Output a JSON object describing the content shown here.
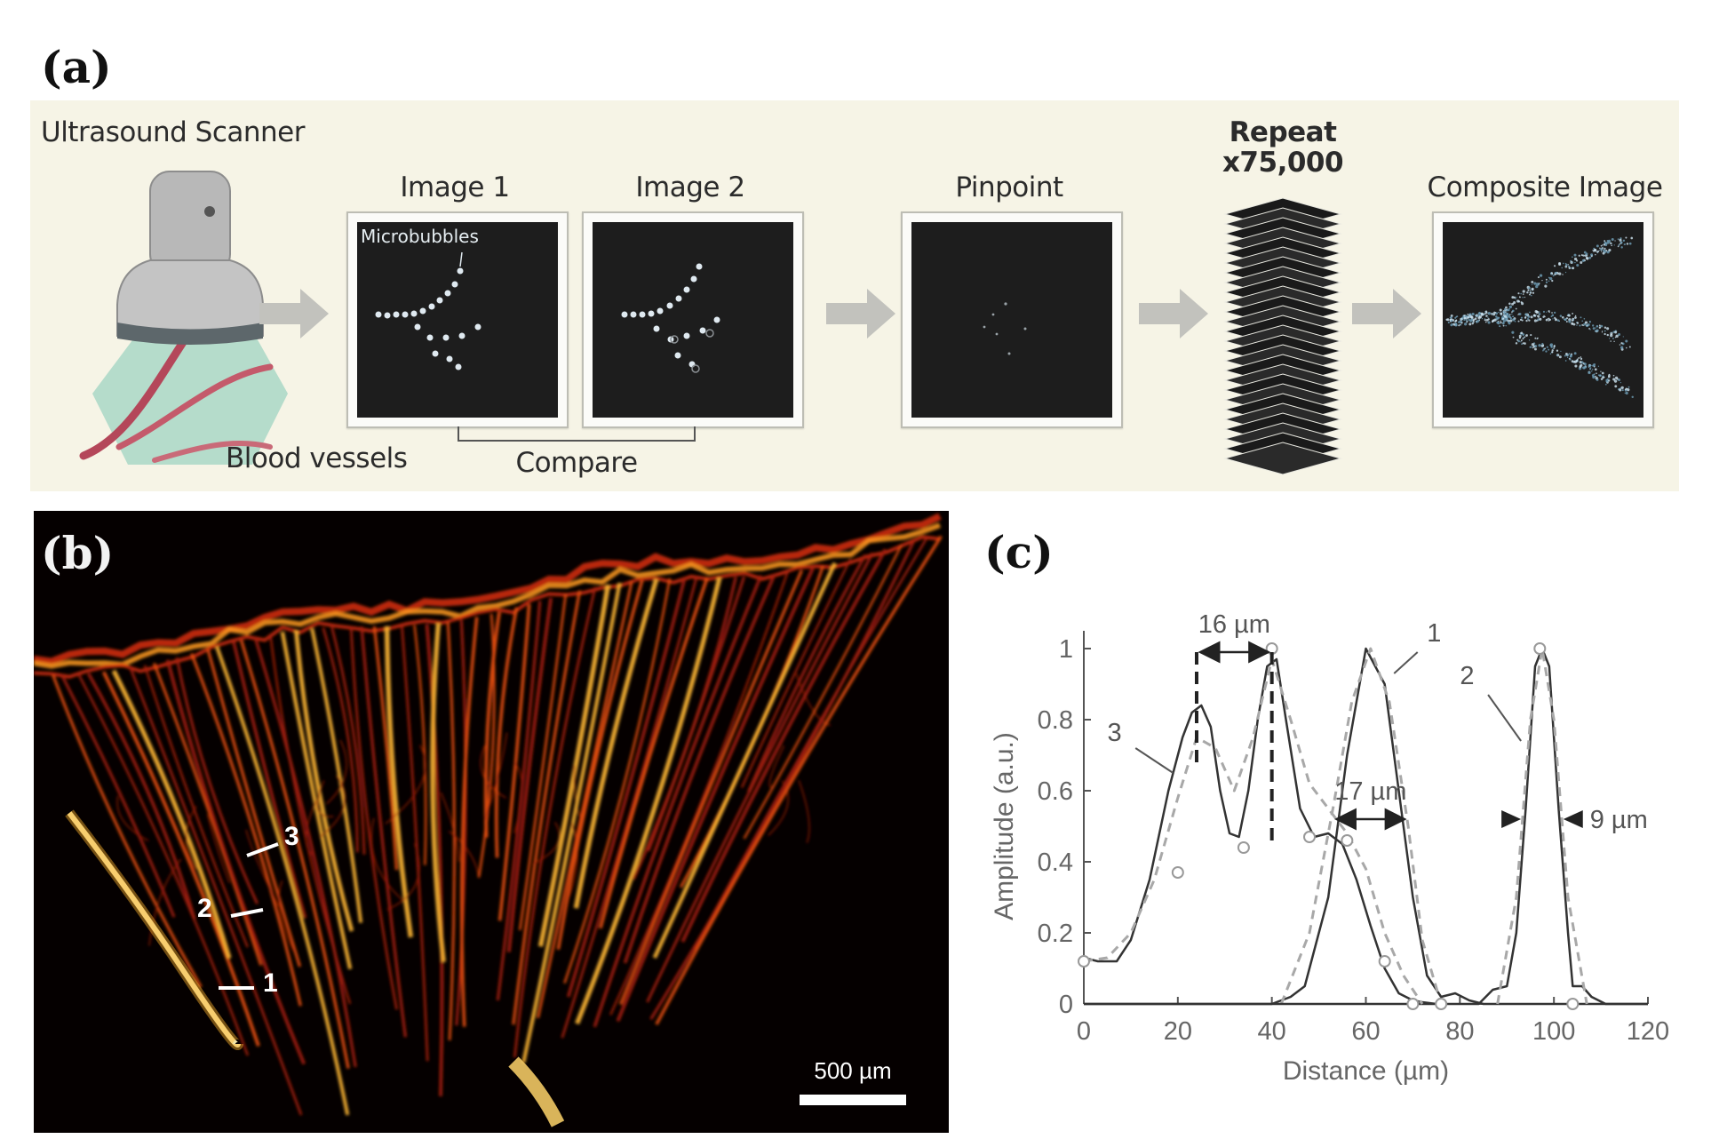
{
  "panel_labels": {
    "a": "(a)",
    "b": "(b)",
    "c": "(c)"
  },
  "workflow": {
    "scanner_label": "Ultrasound Scanner",
    "vessels_label": "Blood vessels",
    "image1_title": "Image 1",
    "image2_title": "Image 2",
    "microbubbles_label": "Microbubbles",
    "compare_label": "Compare",
    "pinpoint_title": "Pinpoint",
    "repeat_line1": "Repeat",
    "repeat_line2": "x75,000",
    "composite_title": "Composite Image",
    "colors": {
      "background": "#f6f4e6",
      "screen": "#1d1d1d",
      "arrow": "#c2c2bd",
      "vessel": "#b4475a",
      "bubble": "#dfe9f0"
    }
  },
  "vessel_image": {
    "scale_bar_label": "500 µm",
    "line_labels": [
      "1",
      "2",
      "3"
    ]
  },
  "chart_data": {
    "type": "line",
    "xlabel": "Distance (µm)",
    "ylabel": "Amplitude (a.u.)",
    "xlim": [
      0,
      120
    ],
    "ylim": [
      0,
      1
    ],
    "x_ticks": [
      "0",
      "20",
      "40",
      "60",
      "80",
      "100",
      "120"
    ],
    "y_ticks": [
      "0",
      "0.2",
      "0.4",
      "0.6",
      "0.8",
      "1"
    ],
    "series": [
      {
        "name": "1",
        "style": "solid",
        "x": [
          0,
          40,
          44,
          47,
          52,
          56,
          60,
          64,
          67,
          70,
          73,
          76,
          79,
          82,
          85,
          120
        ],
        "y": [
          0,
          0,
          0.02,
          0.05,
          0.3,
          0.7,
          1.0,
          0.9,
          0.6,
          0.3,
          0.08,
          0.02,
          0.03,
          0.01,
          0,
          0
        ]
      },
      {
        "name": "1",
        "style": "dashed",
        "x": [
          42,
          48,
          53,
          57,
          61,
          65,
          69,
          72,
          76
        ],
        "y": [
          0,
          0.2,
          0.55,
          0.85,
          1.0,
          0.85,
          0.5,
          0.18,
          0
        ]
      },
      {
        "name": "2",
        "style": "solid",
        "x": [
          0,
          84,
          87,
          90,
          92,
          94,
          96,
          97.5,
          99,
          101,
          103,
          104,
          106,
          108,
          111,
          120
        ],
        "y": [
          0,
          0,
          0.04,
          0.05,
          0.2,
          0.55,
          0.95,
          1.0,
          0.95,
          0.55,
          0.2,
          0.05,
          0.05,
          0.02,
          0,
          0
        ]
      },
      {
        "name": "2",
        "style": "dashed",
        "x": [
          88,
          92,
          95,
          97.5,
          100,
          103,
          107
        ],
        "y": [
          0,
          0.3,
          0.8,
          1.0,
          0.8,
          0.3,
          0
        ]
      },
      {
        "name": "3",
        "style": "solid",
        "x": [
          0,
          3,
          7,
          10,
          14,
          18,
          21,
          23,
          25,
          27,
          29,
          31,
          33,
          35,
          37,
          39,
          41,
          43,
          46,
          49,
          52,
          55,
          58,
          61,
          64,
          67,
          70,
          72,
          75
        ],
        "y": [
          0.13,
          0.12,
          0.12,
          0.18,
          0.35,
          0.6,
          0.75,
          0.82,
          0.84,
          0.78,
          0.6,
          0.48,
          0.47,
          0.6,
          0.8,
          0.95,
          0.97,
          0.8,
          0.55,
          0.47,
          0.48,
          0.45,
          0.35,
          0.22,
          0.1,
          0.03,
          0.01,
          0.005,
          0
        ]
      },
      {
        "name": "3",
        "style": "dashed",
        "x": [
          0,
          5,
          10,
          15,
          20,
          24,
          28,
          32,
          36,
          40,
          44,
          48,
          52,
          56,
          60,
          64,
          68,
          72
        ],
        "y": [
          0.12,
          0.13,
          0.2,
          0.35,
          0.58,
          0.75,
          0.72,
          0.6,
          0.75,
          0.97,
          0.8,
          0.62,
          0.55,
          0.48,
          0.38,
          0.2,
          0.08,
          0
        ]
      }
    ],
    "markers": {
      "x": [
        0,
        20,
        34,
        40,
        48,
        56,
        64,
        70,
        76,
        97,
        104
      ],
      "y": [
        0.12,
        0.37,
        0.44,
        1.0,
        0.47,
        0.46,
        0.12,
        0,
        0,
        1.0,
        0
      ]
    },
    "annotations": [
      {
        "text": "16 µm",
        "from": 24,
        "to": 40,
        "y": 0.99,
        "kind": "double-arrow"
      },
      {
        "text": "17 µm",
        "from": 53,
        "to": 69,
        "y": 0.52,
        "kind": "double-arrow"
      },
      {
        "text": "9 µm",
        "from": 93,
        "to": 102,
        "y": 0.52,
        "kind": "inward-arrows"
      }
    ],
    "curve_labels": [
      "1",
      "2",
      "3"
    ]
  }
}
